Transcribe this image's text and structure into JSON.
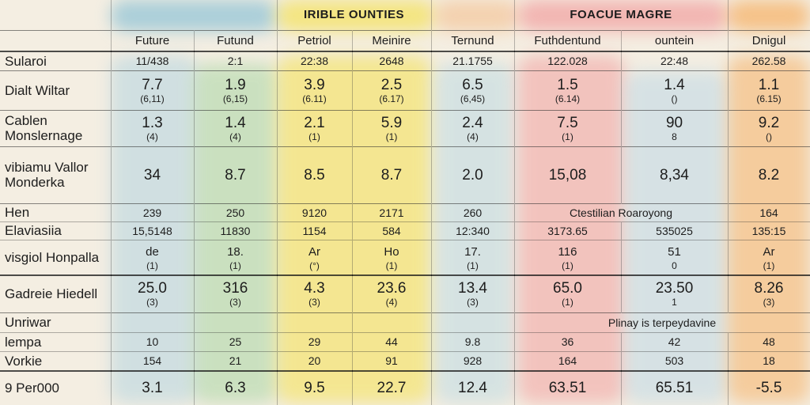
{
  "header": {
    "groups": [
      "",
      "",
      "IRIBLE OUNTIES",
      "",
      "FOACUE MAGRE",
      ""
    ],
    "columns": [
      "Future",
      "Futund",
      "Petriol",
      "Meinire",
      "Ternund",
      "Futhdentund",
      "ountein",
      "Dnigul"
    ]
  },
  "rows": [
    {
      "label": "Sularoi",
      "cells": [
        "11/438",
        "2:1",
        "22:38",
        "2648",
        "21.1755",
        "122.028",
        "22:48",
        "262.58"
      ]
    },
    {
      "label": "Dialt Wiltar",
      "cells": [
        {
          "v": "7.7",
          "s": "(6,11)"
        },
        {
          "v": "1.9",
          "s": "(6,15)"
        },
        {
          "v": "3.9",
          "s": "(6.11)"
        },
        {
          "v": "2.5",
          "s": "(6.17)"
        },
        {
          "v": "6.5",
          "s": "(6,45)"
        },
        {
          "v": "1.5",
          "s": "(6.14)"
        },
        {
          "v": "1.4",
          "s": "()"
        },
        {
          "v": "1.1",
          "s": "(6.15)"
        }
      ]
    },
    {
      "label": "Cablen Monslernage",
      "cells": [
        {
          "v": "1.3",
          "s": "(4)"
        },
        {
          "v": "1.4",
          "s": "(4)"
        },
        {
          "v": "2.1",
          "s": "(1)"
        },
        {
          "v": "5.9",
          "s": "(1)"
        },
        {
          "v": "2.4",
          "s": "(4)"
        },
        {
          "v": "7.5",
          "s": "(1)"
        },
        {
          "v": "90",
          "s": "8"
        },
        {
          "v": "9.2",
          "s": "()"
        }
      ]
    },
    {
      "label": "vibiamu Vallor Monderka",
      "cells": [
        "34",
        "8.7",
        "8.5",
        "8.7",
        "2.0",
        "15,08",
        "8,34",
        "8.2"
      ]
    },
    {
      "label": "Hen",
      "cells": [
        "239",
        "250",
        "9120",
        "2171",
        "260"
      ],
      "note": "Ctestilian Roaroyong",
      "last": "164"
    },
    {
      "label": "Elaviasiia",
      "cells": [
        "15,5148",
        "11830",
        "1154",
        "584",
        "12:340",
        "3173.65",
        "535025",
        "135:15"
      ]
    },
    {
      "label": "visgiol Honpalla",
      "cells": [
        {
          "v": "de",
          "s": "(1)"
        },
        {
          "v": "18.",
          "s": "(1)"
        },
        {
          "v": "Ar",
          "s": "(°)"
        },
        {
          "v": "Ho",
          "s": "(1)"
        },
        {
          "v": "17.",
          "s": "(1)"
        },
        {
          "v": "116",
          "s": "(1)"
        },
        {
          "v": "51",
          "s": "0"
        },
        {
          "v": "Ar",
          "s": "(1)"
        }
      ]
    },
    {
      "label": "Gadreie Hiedell",
      "cells": [
        {
          "v": "25.0",
          "s": "(3)"
        },
        {
          "v": "316",
          "s": "(3)"
        },
        {
          "v": "4.3",
          "s": "(3)"
        },
        {
          "v": "23.6",
          "s": "(4)"
        },
        {
          "v": "13.4",
          "s": "(3)"
        },
        {
          "v": "65.0",
          "s": "(1)"
        },
        {
          "v": "23.50",
          "s": "1"
        },
        {
          "v": "8.26",
          "s": "(3)"
        }
      ]
    },
    {
      "label": "Unriwar",
      "note": "Plinay is terpeydavine"
    },
    {
      "label": "lempa",
      "cells": [
        "10",
        "25",
        "29",
        "44",
        "9.8",
        "36",
        "42",
        "48"
      ]
    },
    {
      "label": "Vorkie",
      "cells": [
        "154",
        "21",
        "20",
        "91",
        "928",
        "164",
        "503",
        "18"
      ]
    },
    {
      "label": "9 Per000",
      "cells": [
        "3.1",
        "6.3",
        "9.5",
        "22.7",
        "12.4",
        "63.51",
        "65.51",
        "-5.5"
      ]
    }
  ],
  "colors": {
    "blue": "#9cc8d8",
    "green": "#a9d6a4",
    "yellow": "#f4e25c",
    "peach": "#f4c79c",
    "pink": "#f2a0a0",
    "orange": "#f6b166"
  }
}
